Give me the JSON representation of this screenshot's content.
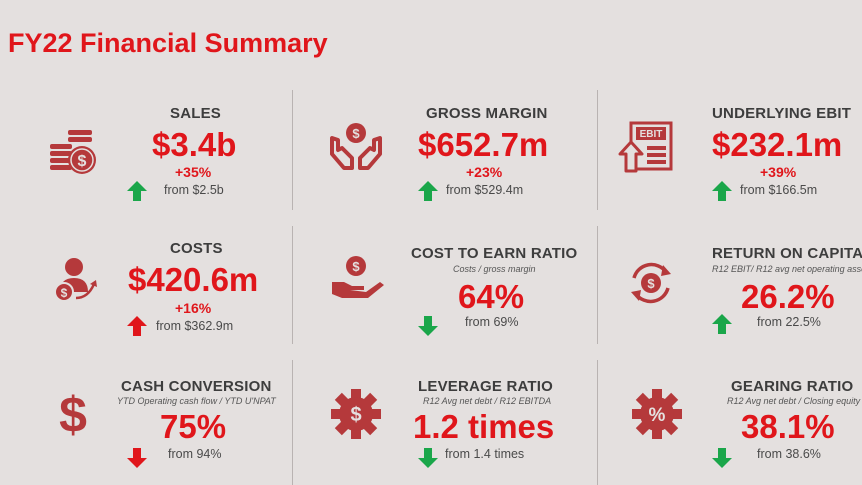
{
  "page": {
    "title": "FY22 Financial Summary"
  },
  "colors": {
    "accent": "#e0161b",
    "icon": "#b5393b",
    "up": "#1aa64a",
    "down": "#e0161b"
  },
  "metrics": [
    {
      "label": "SALES",
      "subtitle": "",
      "value": "$3.4b",
      "change": "+35%",
      "from": "from $2.5b",
      "direction": "up",
      "icon": "coins-stack-dollar-icon"
    },
    {
      "label": "GROSS MARGIN",
      "subtitle": "",
      "value": "$652.7m",
      "change": "+23%",
      "from": "from $529.4m",
      "direction": "up",
      "icon": "hands-holding-dollar-icon"
    },
    {
      "label": "UNDERLYING EBIT",
      "subtitle": "",
      "value": "$232.1m",
      "change": "+39%",
      "from": "from $166.5m",
      "direction": "up",
      "icon": "ebit-document-icon"
    },
    {
      "label": "COSTS",
      "subtitle": "",
      "value": "$420.6m",
      "change": "+16%",
      "from": "from $362.9m",
      "direction": "up",
      "icon": "person-dollar-icon"
    },
    {
      "label": "COST TO EARN RATIO",
      "subtitle": "Costs / gross margin",
      "value": "64%",
      "change": "",
      "from": "from 69%",
      "direction": "down",
      "icon": "hand-dollar-icon"
    },
    {
      "label": "RETURN ON CAPITAL",
      "subtitle": "R12 EBIT/ R12 avg net operating asse",
      "value": "26.2%",
      "change": "",
      "from": "from 22.5%",
      "direction": "up",
      "icon": "circular-arrows-dollar-icon"
    },
    {
      "label": "CASH CONVERSION",
      "subtitle": "YTD Operating cash flow / YTD U'NPAT",
      "value": "75%",
      "change": "",
      "from": "from 94%",
      "direction": "down",
      "icon": "dollar-sign-icon"
    },
    {
      "label": "LEVERAGE RATIO",
      "subtitle": "R12 Avg net debt / R12 EBITDA",
      "value": "1.2 times",
      "change": "",
      "from": "from 1.4 times",
      "direction": "down",
      "icon": "gear-dollar-icon"
    },
    {
      "label": "GEARING RATIO",
      "subtitle": "R12 Avg net debt / Closing equity",
      "value": "38.1%",
      "change": "",
      "from": "from 38.6%",
      "direction": "down",
      "icon": "gear-percent-icon"
    }
  ]
}
